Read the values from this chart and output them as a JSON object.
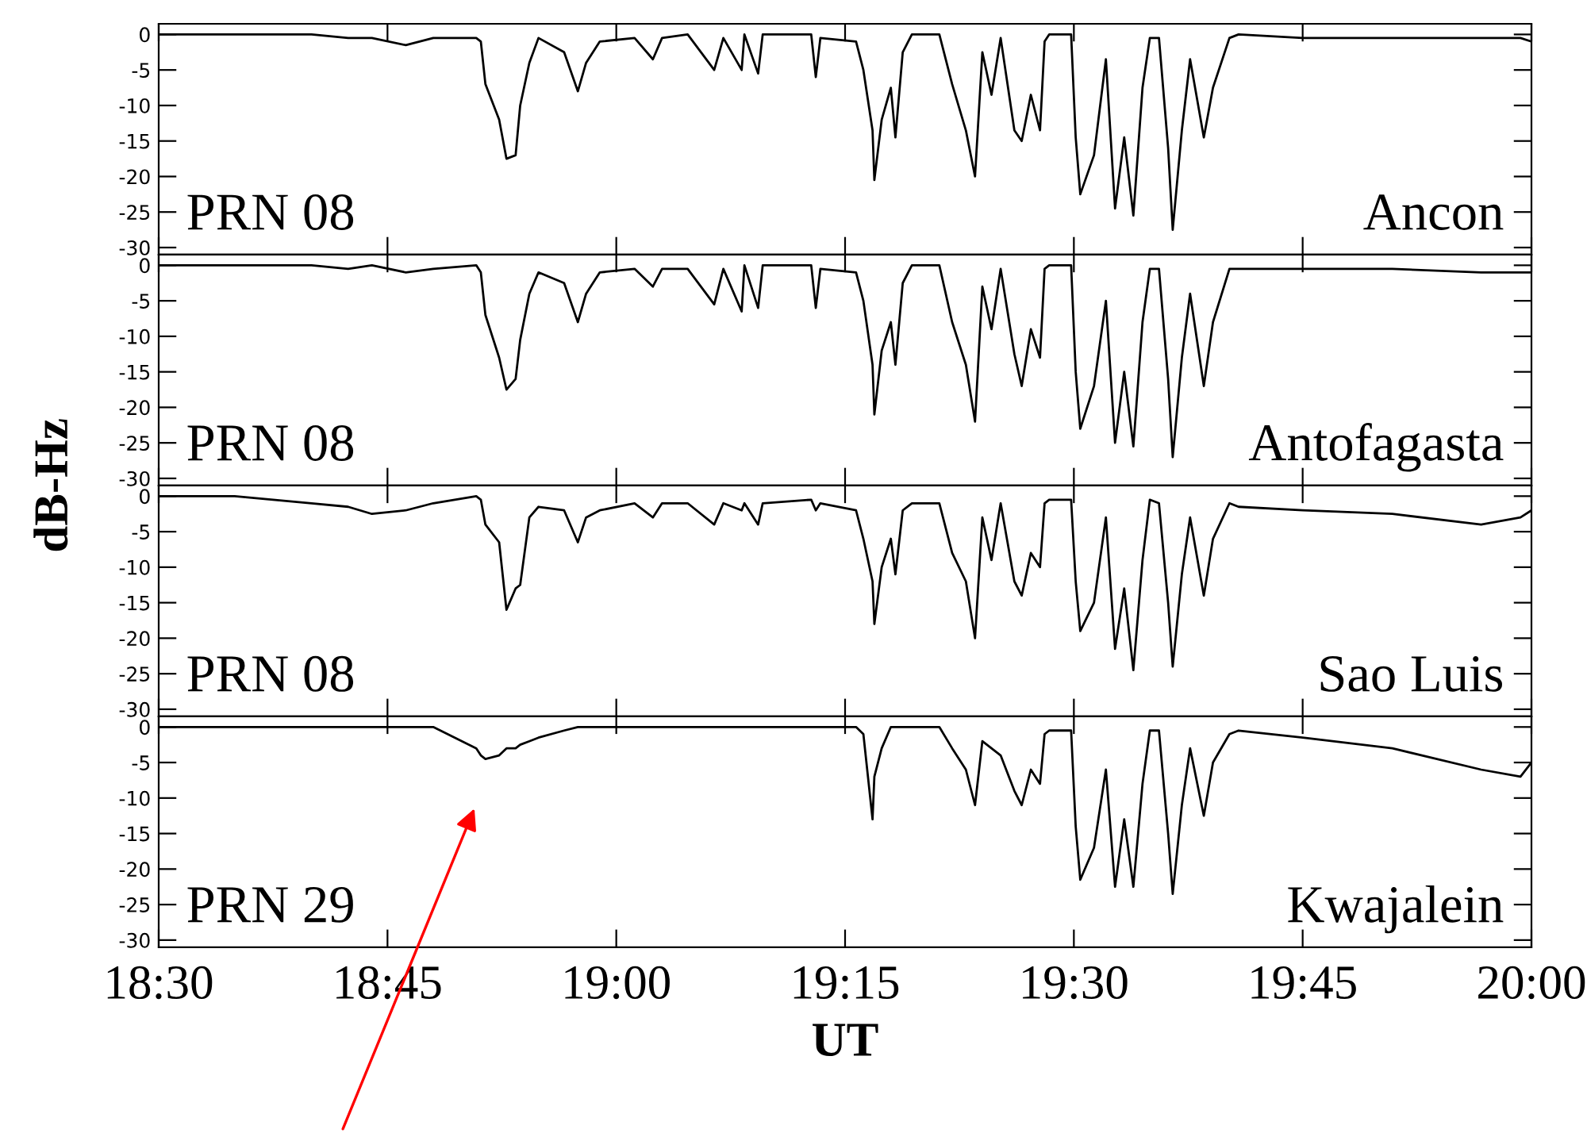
{
  "chart_data": [
    {
      "type": "line",
      "annotations": [
        "PRN 08",
        "Ancon"
      ],
      "tick_labels": "y",
      "xlim": [
        18.5,
        20.0
      ],
      "ylim": [
        -31,
        1.5
      ],
      "yticks": [
        0,
        -5,
        -10,
        -15,
        -20,
        -25,
        -30
      ],
      "grid": false,
      "legend": false,
      "x": [
        18.5,
        18.583,
        18.667,
        18.707,
        18.733,
        18.77,
        18.8,
        18.847,
        18.852,
        18.857,
        18.872,
        18.88,
        18.89,
        18.895,
        18.905,
        18.915,
        18.943,
        18.958,
        18.967,
        18.982,
        19.02,
        19.04,
        19.05,
        19.078,
        19.107,
        19.117,
        19.137,
        19.14,
        19.155,
        19.16,
        19.213,
        19.218,
        19.223,
        19.262,
        19.27,
        19.28,
        19.282,
        19.29,
        19.3,
        19.305,
        19.313,
        19.323,
        19.353,
        19.367,
        19.382,
        19.392,
        19.4,
        19.41,
        19.42,
        19.435,
        19.443,
        19.453,
        19.463,
        19.468,
        19.473,
        19.497,
        19.502,
        19.507,
        19.522,
        19.535,
        19.545,
        19.555,
        19.565,
        19.575,
        19.583,
        19.593,
        19.603,
        19.608,
        19.618,
        19.627,
        19.642,
        19.652,
        19.67,
        19.68,
        19.75,
        19.848,
        19.945,
        19.988,
        20.0
      ],
      "series": [
        {
          "color": "#000000",
          "values": [
            0,
            0,
            0,
            -0.5,
            -0.5,
            -1.5,
            -0.5,
            -0.5,
            -1,
            -7,
            -12,
            -17.5,
            -17,
            -10,
            -4,
            -0.5,
            -2.5,
            -8,
            -4,
            -1,
            -0.5,
            -3.5,
            -0.5,
            0,
            -5,
            -0.5,
            -5,
            0,
            -5.5,
            0,
            0,
            -6,
            -0.5,
            -1,
            -5,
            -13.5,
            -20.5,
            -12,
            -7.5,
            -14.5,
            -2.5,
            0,
            0,
            -7,
            -13.5,
            -20,
            -2.5,
            -8.5,
            -0.5,
            -13.5,
            -15,
            -8.5,
            -13.5,
            -1,
            0,
            0,
            -14.5,
            -22.5,
            -17,
            -3.5,
            -24.5,
            -14.5,
            -25.5,
            -7.5,
            -0.5,
            -0.5,
            -16,
            -27.5,
            -13.5,
            -3.5,
            -14.5,
            -7.5,
            -0.5,
            0,
            -0.5,
            -0.5,
            -0.5,
            -0.5,
            -1
          ]
        }
      ]
    },
    {
      "type": "line",
      "annotations": [
        "PRN 08",
        "Antofagasta"
      ],
      "tick_labels": "y",
      "xlim": [
        18.5,
        20.0
      ],
      "ylim": [
        -31,
        1.5
      ],
      "yticks": [
        0,
        -5,
        -10,
        -15,
        -20,
        -25,
        -30
      ],
      "grid": false,
      "legend": false,
      "ylabel": "dB-Hz",
      "x": [
        18.5,
        18.583,
        18.667,
        18.707,
        18.733,
        18.77,
        18.8,
        18.847,
        18.852,
        18.857,
        18.872,
        18.88,
        18.89,
        18.895,
        18.905,
        18.915,
        18.943,
        18.958,
        18.967,
        18.982,
        19.02,
        19.04,
        19.05,
        19.078,
        19.107,
        19.117,
        19.137,
        19.14,
        19.155,
        19.16,
        19.213,
        19.218,
        19.223,
        19.262,
        19.27,
        19.28,
        19.282,
        19.29,
        19.3,
        19.305,
        19.313,
        19.323,
        19.353,
        19.367,
        19.382,
        19.392,
        19.4,
        19.41,
        19.42,
        19.435,
        19.443,
        19.453,
        19.463,
        19.468,
        19.473,
        19.497,
        19.502,
        19.507,
        19.522,
        19.535,
        19.545,
        19.555,
        19.565,
        19.575,
        19.583,
        19.593,
        19.603,
        19.608,
        19.618,
        19.627,
        19.642,
        19.652,
        19.67,
        19.68,
        19.75,
        19.848,
        19.945,
        19.988,
        20.0
      ],
      "series": [
        {
          "color": "#000000",
          "values": [
            0,
            0,
            0,
            -0.5,
            0,
            -1,
            -0.5,
            0,
            -1,
            -7,
            -13,
            -17.5,
            -16,
            -10.5,
            -4,
            -1,
            -2.5,
            -8,
            -4,
            -1,
            -0.5,
            -3,
            -0.5,
            -0.5,
            -5.5,
            -0.5,
            -6.5,
            0,
            -6,
            0,
            0,
            -6,
            -0.5,
            -1,
            -5,
            -14,
            -21,
            -12,
            -8,
            -14,
            -2.5,
            0,
            0,
            -8,
            -14,
            -22,
            -3,
            -9,
            -0.5,
            -12.5,
            -17,
            -9,
            -13,
            -0.5,
            0,
            0,
            -15,
            -23,
            -17,
            -5,
            -25,
            -15,
            -25.5,
            -8,
            -0.5,
            -0.5,
            -16,
            -27,
            -13,
            -4,
            -17,
            -8,
            -0.5,
            -0.5,
            -0.5,
            -0.5,
            -1,
            -1,
            -1
          ]
        }
      ]
    },
    {
      "type": "line",
      "annotations": [
        "PRN 08",
        "Sao Luis"
      ],
      "tick_labels": "y",
      "xlim": [
        18.5,
        20.0
      ],
      "ylim": [
        -31,
        1.5
      ],
      "yticks": [
        0,
        -5,
        -10,
        -15,
        -20,
        -25,
        -30
      ],
      "grid": false,
      "legend": false,
      "x": [
        18.5,
        18.583,
        18.667,
        18.707,
        18.733,
        18.77,
        18.8,
        18.847,
        18.852,
        18.857,
        18.872,
        18.88,
        18.89,
        18.895,
        18.905,
        18.915,
        18.943,
        18.958,
        18.967,
        18.982,
        19.02,
        19.04,
        19.05,
        19.078,
        19.107,
        19.117,
        19.137,
        19.14,
        19.155,
        19.16,
        19.213,
        19.218,
        19.223,
        19.262,
        19.27,
        19.28,
        19.282,
        19.29,
        19.3,
        19.305,
        19.313,
        19.323,
        19.353,
        19.367,
        19.382,
        19.392,
        19.4,
        19.41,
        19.42,
        19.435,
        19.443,
        19.453,
        19.463,
        19.468,
        19.473,
        19.497,
        19.502,
        19.507,
        19.522,
        19.535,
        19.545,
        19.555,
        19.565,
        19.575,
        19.583,
        19.593,
        19.603,
        19.608,
        19.618,
        19.627,
        19.642,
        19.652,
        19.67,
        19.68,
        19.75,
        19.848,
        19.945,
        19.988,
        20.0
      ],
      "series": [
        {
          "color": "#000000",
          "values": [
            0,
            0,
            -1,
            -1.5,
            -2.5,
            -2,
            -1,
            0,
            -0.5,
            -4,
            -6.5,
            -16,
            -13,
            -12.5,
            -3,
            -1.5,
            -2,
            -6.5,
            -3,
            -2,
            -1,
            -3,
            -1,
            -1,
            -4,
            -1,
            -2,
            -1,
            -4,
            -1,
            -0.5,
            -2,
            -1,
            -2,
            -6,
            -12,
            -18,
            -10,
            -6,
            -11,
            -2,
            -1,
            -1,
            -8,
            -12,
            -20,
            -3,
            -9,
            -1,
            -12,
            -14,
            -8,
            -10,
            -1,
            -0.5,
            -0.5,
            -12,
            -19,
            -15,
            -3,
            -21.5,
            -13,
            -24.5,
            -9,
            -0.5,
            -1,
            -15,
            -24,
            -11,
            -3,
            -14,
            -6,
            -1,
            -1.5,
            -2,
            -2.5,
            -4,
            -3,
            -2
          ]
        }
      ]
    },
    {
      "type": "line",
      "annotations": [
        "PRN 29",
        "Kwajalein"
      ],
      "xlabel": "UT",
      "xlim": [
        18.5,
        20.0
      ],
      "xticks": [
        {
          "value": 18.5,
          "label": "18:30"
        },
        {
          "value": 18.75,
          "label": "18:45"
        },
        {
          "value": 19.0,
          "label": "19:00"
        },
        {
          "value": 19.25,
          "label": "19:15"
        },
        {
          "value": 19.5,
          "label": "19:30"
        },
        {
          "value": 19.75,
          "label": "19:45"
        },
        {
          "value": 20.0,
          "label": "20:00"
        }
      ],
      "ylim": [
        -31,
        1.5
      ],
      "yticks": [
        0,
        -5,
        -10,
        -15,
        -20,
        -25,
        -30
      ],
      "grid": false,
      "legend": false,
      "x": [
        18.5,
        18.583,
        18.667,
        18.707,
        18.733,
        18.77,
        18.8,
        18.847,
        18.852,
        18.857,
        18.872,
        18.88,
        18.89,
        18.895,
        18.905,
        18.915,
        18.943,
        18.958,
        18.967,
        18.982,
        19.02,
        19.04,
        19.05,
        19.078,
        19.107,
        19.117,
        19.137,
        19.14,
        19.155,
        19.16,
        19.213,
        19.218,
        19.223,
        19.262,
        19.27,
        19.28,
        19.282,
        19.29,
        19.3,
        19.305,
        19.313,
        19.323,
        19.353,
        19.367,
        19.382,
        19.392,
        19.4,
        19.41,
        19.42,
        19.435,
        19.443,
        19.453,
        19.463,
        19.468,
        19.473,
        19.497,
        19.502,
        19.507,
        19.522,
        19.535,
        19.545,
        19.555,
        19.565,
        19.575,
        19.583,
        19.593,
        19.603,
        19.608,
        19.618,
        19.627,
        19.642,
        19.652,
        19.67,
        19.68,
        19.75,
        19.848,
        19.945,
        19.988,
        20.0
      ],
      "series": [
        {
          "color": "#000000",
          "values": [
            0,
            0,
            0,
            0,
            0,
            0,
            0,
            -3,
            -4,
            -4.5,
            -4,
            -3,
            -3,
            -2.5,
            -2,
            -1.5,
            -0.5,
            0,
            0,
            0,
            0,
            0,
            0,
            0,
            0,
            0,
            0,
            0,
            0,
            0,
            0,
            0,
            0,
            0,
            -1,
            -13,
            -7,
            -3,
            0,
            0,
            0,
            0,
            0,
            -3,
            -6,
            -11,
            -2,
            -3,
            -4,
            -9,
            -11,
            -6,
            -8,
            -1,
            -0.5,
            -0.5,
            -14,
            -21.5,
            -17,
            -6,
            -22.5,
            -13,
            -22.5,
            -8,
            -0.5,
            -0.5,
            -15,
            -23.5,
            -11,
            -3,
            -12.5,
            -5,
            -1,
            -0.5,
            -1.5,
            -3,
            -6,
            -7,
            -5
          ]
        }
      ]
    }
  ]
}
